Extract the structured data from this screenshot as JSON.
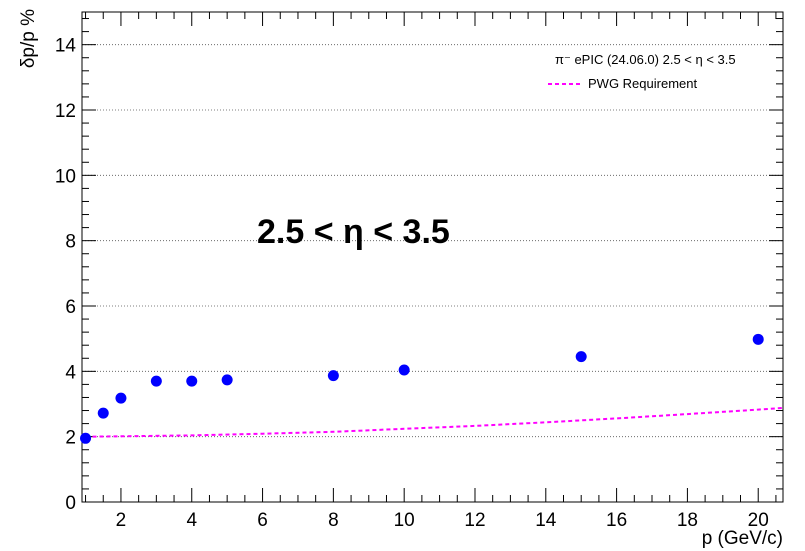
{
  "chart_data": {
    "type": "scatter",
    "title": "",
    "xlabel": "p (GeV/c)",
    "ylabel": "δp/p %",
    "xlim": [
      0.9,
      20.7
    ],
    "ylim": [
      0,
      15
    ],
    "x_ticks": [
      2,
      4,
      6,
      8,
      10,
      12,
      14,
      16,
      18,
      20
    ],
    "y_ticks": [
      0,
      2,
      4,
      6,
      8,
      10,
      12,
      14
    ],
    "grid": "horizontal dotted at major y ticks",
    "legend_position": "top-right",
    "annotation": "2.5 < η < 3.5",
    "series": [
      {
        "name": "π⁻ ePIC (24.06.0) 2.5 < η < 3.5",
        "marker": "circle",
        "color": "#0000ff",
        "x": [
          1,
          1.5,
          2,
          3,
          4,
          5,
          8,
          10,
          15,
          20
        ],
        "y": [
          1.95,
          2.72,
          3.18,
          3.7,
          3.7,
          3.74,
          3.87,
          4.04,
          4.45,
          4.98
        ]
      },
      {
        "name": "PWG Requirement",
        "style": "dashed-line",
        "color": "#ff00ff",
        "x": [
          1,
          2,
          4,
          6,
          8,
          10,
          12,
          14,
          16,
          18,
          20,
          20.7
        ],
        "y": [
          2.0,
          2.01,
          2.04,
          2.09,
          2.15,
          2.24,
          2.33,
          2.44,
          2.56,
          2.69,
          2.83,
          2.88
        ]
      }
    ]
  }
}
